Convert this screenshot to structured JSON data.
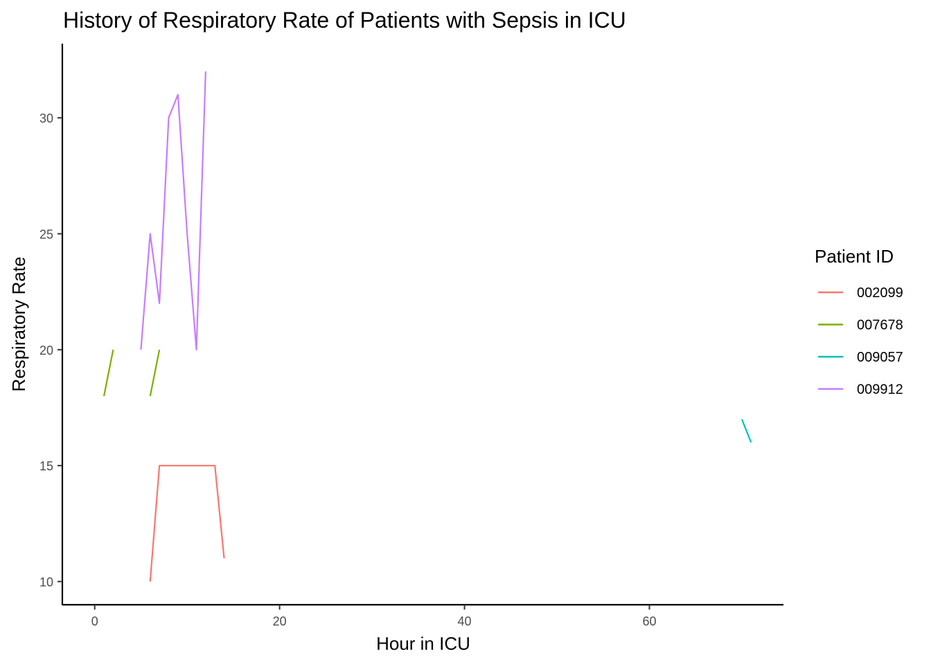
{
  "chart_data": {
    "type": "line",
    "title": "History of Respiratory Rate of Patients with Sepsis in ICU",
    "xlabel": "Hour in ICU",
    "ylabel": "Respiratory Rate",
    "xlim": [
      -3.5,
      74.5
    ],
    "ylim": [
      9.0,
      33.2
    ],
    "x_ticks": [
      0,
      20,
      40,
      60
    ],
    "y_ticks": [
      10,
      15,
      20,
      25,
      30
    ],
    "grid": false,
    "legend": {
      "title": "Patient ID",
      "position": "right"
    },
    "series": [
      {
        "name": "002099",
        "color": "#F8766D",
        "segments": [
          [
            [
              6,
              10
            ],
            [
              7,
              15
            ],
            [
              8,
              15
            ],
            [
              9,
              15
            ],
            [
              10,
              15
            ],
            [
              11,
              15
            ],
            [
              12,
              15
            ],
            [
              13,
              15
            ],
            [
              14,
              11
            ]
          ]
        ]
      },
      {
        "name": "007678",
        "color": "#7CAE00",
        "segments": [
          [
            [
              1,
              18
            ],
            [
              2,
              20
            ]
          ],
          [
            [
              6,
              18
            ],
            [
              7,
              20
            ]
          ]
        ]
      },
      {
        "name": "009057",
        "color": "#00BFC4",
        "segments": [
          [
            [
              70,
              17
            ],
            [
              71,
              16
            ]
          ]
        ]
      },
      {
        "name": "009912",
        "color": "#C77CFF",
        "segments": [
          [
            [
              5,
              20
            ],
            [
              6,
              25
            ],
            [
              7,
              22
            ],
            [
              8,
              30
            ],
            [
              9,
              31
            ],
            [
              10,
              25
            ],
            [
              11,
              20
            ],
            [
              12,
              32
            ]
          ]
        ]
      }
    ]
  }
}
